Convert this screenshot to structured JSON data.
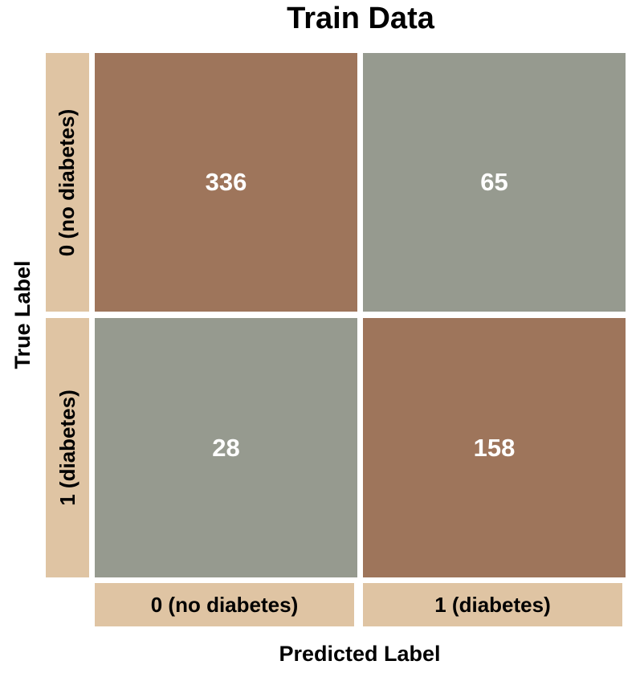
{
  "chart_data": {
    "type": "heatmap",
    "title": "Train Data",
    "xlabel": "Predicted Label",
    "ylabel": "True Label",
    "x_categories": [
      "0 (no diabetes)",
      "1 (diabetes)"
    ],
    "y_categories": [
      "0 (no diabetes)",
      "1 (diabetes)"
    ],
    "values": [
      [
        336,
        65
      ],
      [
        28,
        158
      ]
    ],
    "colors": {
      "diagonal": "#9e755b",
      "off_diagonal": "#969a8f",
      "label_bg": "#dfc4a3"
    }
  }
}
